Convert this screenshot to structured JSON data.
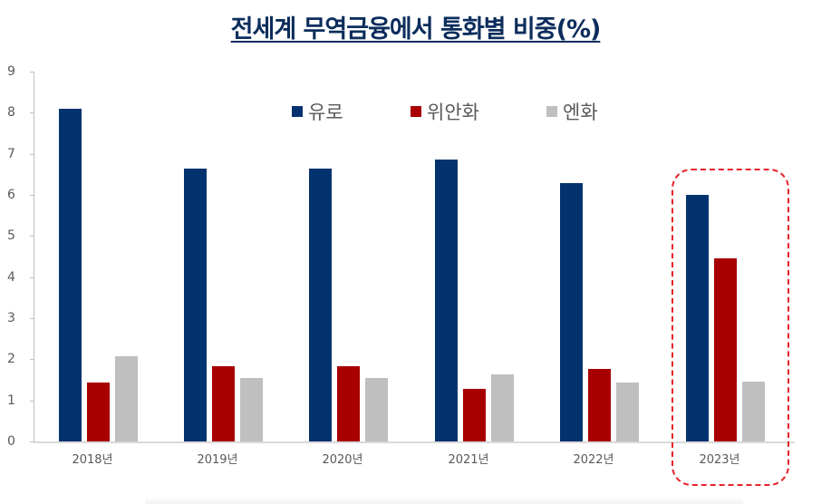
{
  "chart_data": {
    "type": "bar",
    "title": "전세계 무역금융에서 통화별 비중(%)",
    "xlabel": "",
    "ylabel": "",
    "ylim": [
      0,
      9
    ],
    "yticks": [
      "0",
      "1",
      "2",
      "3",
      "4",
      "5",
      "6",
      "7",
      "8",
      "9"
    ],
    "categories": [
      "2018년",
      "2019년",
      "2020년",
      "2021년",
      "2022년",
      "2023년"
    ],
    "series": [
      {
        "name": "유로",
        "color": "#03336e",
        "values": [
          8.1,
          6.64,
          6.64,
          6.87,
          6.29,
          6.0
        ]
      },
      {
        "name": "위안화",
        "color": "#a80000",
        "values": [
          1.43,
          1.83,
          1.83,
          1.28,
          1.77,
          4.46
        ]
      },
      {
        "name": "엔화",
        "color": "#bfbfbf",
        "values": [
          2.07,
          1.55,
          1.55,
          1.63,
          1.43,
          1.46
        ]
      }
    ],
    "legend_position": "top",
    "grid": false,
    "annotations": [
      {
        "type": "dashed-rounded-box",
        "target": "2023년",
        "color": "#e8222a"
      }
    ]
  }
}
